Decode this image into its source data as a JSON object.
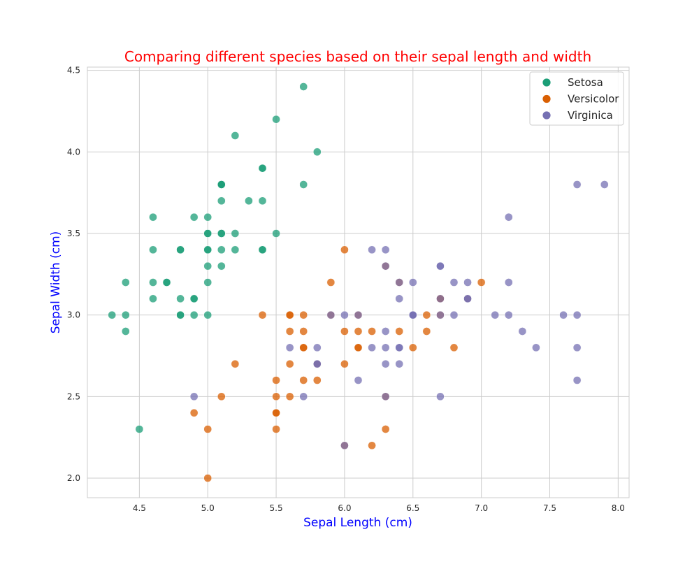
{
  "chart_data": {
    "type": "scatter",
    "title": "Comparing different species based on their sepal length and width",
    "xlabel": "Sepal Length (cm)",
    "ylabel": "Sepal Width (cm)",
    "xlim": [
      4.12,
      8.08
    ],
    "ylim": [
      1.88,
      4.52
    ],
    "xticks": [
      4.5,
      5.0,
      5.5,
      6.0,
      6.5,
      7.0,
      7.5,
      8.0
    ],
    "xtick_labels": [
      "4.5",
      "5.0",
      "5.5",
      "6.0",
      "6.5",
      "7.0",
      "7.5",
      "8.0"
    ],
    "yticks": [
      2.0,
      2.5,
      3.0,
      3.5,
      4.0,
      4.5
    ],
    "ytick_labels": [
      "2.0",
      "2.5",
      "3.0",
      "3.5",
      "4.0",
      "4.5"
    ],
    "grid": true,
    "legend_position": "top-right",
    "title_color": "#ff0000",
    "label_color": "#0000ff",
    "series": [
      {
        "name": "Setosa",
        "color": "#1b9e77",
        "x": [
          5.1,
          4.9,
          4.7,
          4.6,
          5.0,
          5.4,
          4.6,
          5.0,
          4.4,
          4.9,
          5.4,
          4.8,
          4.8,
          4.3,
          5.8,
          5.7,
          5.4,
          5.1,
          5.7,
          5.1,
          5.4,
          5.1,
          4.6,
          5.1,
          4.8,
          5.0,
          5.0,
          5.2,
          5.2,
          4.7,
          4.8,
          5.4,
          5.2,
          5.5,
          4.9,
          5.0,
          5.5,
          4.9,
          4.4,
          5.1,
          5.0,
          4.5,
          4.4,
          5.0,
          5.1,
          4.8,
          5.1,
          4.6,
          5.3,
          5.0
        ],
        "y": [
          3.5,
          3.0,
          3.2,
          3.1,
          3.6,
          3.9,
          3.4,
          3.4,
          2.9,
          3.1,
          3.7,
          3.4,
          3.0,
          3.0,
          4.0,
          4.4,
          3.9,
          3.5,
          3.8,
          3.8,
          3.4,
          3.7,
          3.6,
          3.3,
          3.4,
          3.0,
          3.4,
          3.5,
          3.4,
          3.2,
          3.1,
          3.4,
          4.1,
          4.2,
          3.1,
          3.2,
          3.5,
          3.6,
          3.0,
          3.4,
          3.5,
          2.3,
          3.2,
          3.5,
          3.8,
          3.0,
          3.8,
          3.2,
          3.7,
          3.3
        ]
      },
      {
        "name": "Versicolor",
        "color": "#d95f02",
        "x": [
          7.0,
          6.4,
          6.9,
          5.5,
          6.5,
          5.7,
          6.3,
          4.9,
          6.6,
          5.2,
          5.0,
          5.9,
          6.0,
          6.1,
          5.6,
          6.7,
          5.6,
          5.8,
          6.2,
          5.6,
          5.9,
          6.1,
          6.3,
          6.1,
          6.4,
          6.6,
          6.8,
          6.7,
          6.0,
          5.7,
          5.5,
          5.5,
          5.8,
          6.0,
          5.4,
          6.0,
          6.7,
          6.3,
          5.6,
          5.5,
          5.5,
          6.1,
          5.8,
          5.0,
          5.6,
          5.7,
          5.7,
          6.2,
          5.1,
          5.7
        ],
        "y": [
          3.2,
          3.2,
          3.1,
          2.3,
          2.8,
          2.8,
          3.3,
          2.4,
          2.9,
          2.7,
          2.0,
          3.0,
          2.2,
          2.9,
          2.9,
          3.1,
          3.0,
          2.7,
          2.2,
          2.5,
          3.2,
          2.8,
          2.5,
          2.8,
          2.9,
          3.0,
          2.8,
          3.0,
          2.9,
          2.6,
          2.4,
          2.4,
          2.7,
          2.7,
          3.0,
          3.4,
          3.1,
          2.3,
          3.0,
          2.5,
          2.6,
          3.0,
          2.6,
          2.3,
          2.7,
          3.0,
          2.9,
          2.9,
          2.5,
          2.8
        ]
      },
      {
        "name": "Virginica",
        "color": "#7570b3",
        "x": [
          6.3,
          5.8,
          7.1,
          6.3,
          6.5,
          7.6,
          4.9,
          7.3,
          6.7,
          7.2,
          6.5,
          6.4,
          6.8,
          5.7,
          5.8,
          6.4,
          6.5,
          7.7,
          7.7,
          6.0,
          6.9,
          5.6,
          7.7,
          6.3,
          6.7,
          7.2,
          6.2,
          6.1,
          6.4,
          7.2,
          7.4,
          7.9,
          6.4,
          6.3,
          6.1,
          7.7,
          6.3,
          6.4,
          6.0,
          6.9,
          6.7,
          6.9,
          5.8,
          6.8,
          6.7,
          6.7,
          6.3,
          6.5,
          6.2,
          5.9
        ],
        "y": [
          3.3,
          2.7,
          3.0,
          2.9,
          3.0,
          3.0,
          2.5,
          2.9,
          2.5,
          3.6,
          3.2,
          2.7,
          3.0,
          2.5,
          2.8,
          3.2,
          3.0,
          3.8,
          2.6,
          2.2,
          3.2,
          2.8,
          2.8,
          2.7,
          3.3,
          3.2,
          2.8,
          3.0,
          2.8,
          3.0,
          2.8,
          3.8,
          2.8,
          2.8,
          2.6,
          3.0,
          3.4,
          3.1,
          3.0,
          3.1,
          3.1,
          3.1,
          2.7,
          3.2,
          3.3,
          3.0,
          2.5,
          3.0,
          3.4,
          3.0
        ]
      }
    ]
  }
}
